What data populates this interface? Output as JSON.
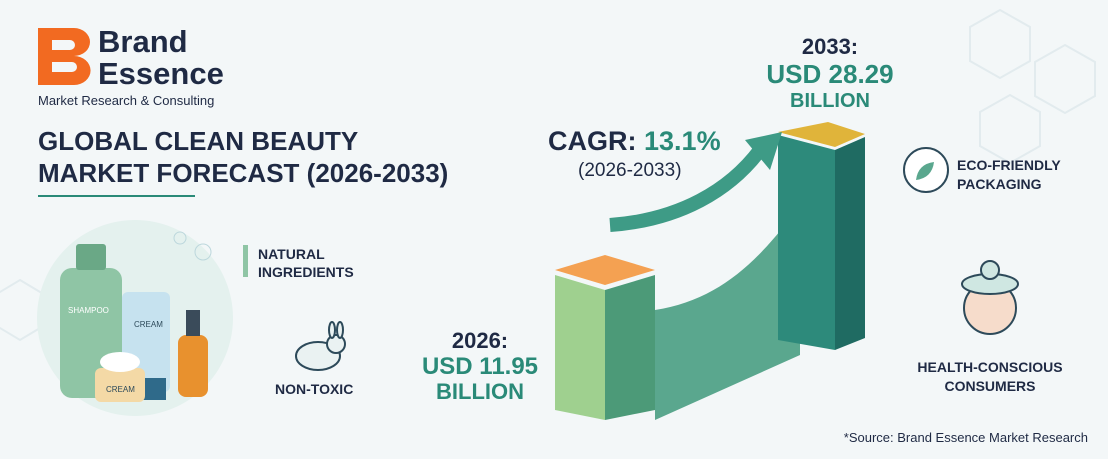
{
  "logo": {
    "name_line1": "Brand",
    "name_line2": "Essence",
    "tagline": "Market Research & Consulting"
  },
  "title": [
    "GLOBAL CLEAN BEAUTY",
    "MARKET FORECAST (2026-2033)"
  ],
  "products": [
    "SHAMPOO",
    "CREAM",
    "CREAM"
  ],
  "features": [
    "NATURAL INGREDIENTS",
    "NON-TOXIC",
    "ECO-FRIENDLY PACKAGING",
    "HEALTH-CONSCIOUS CONSUMERS"
  ],
  "cagr": {
    "label": "CAGR:",
    "value": "13.1%",
    "period": "(2026-2033)"
  },
  "start": {
    "year": "2026:",
    "amount": "USD 11.95",
    "unit": "BILLION"
  },
  "end": {
    "year": "2033:",
    "amount": "USD 28.29",
    "unit": "BILLION"
  },
  "source": "*Source: Brand Essence Market Research"
}
